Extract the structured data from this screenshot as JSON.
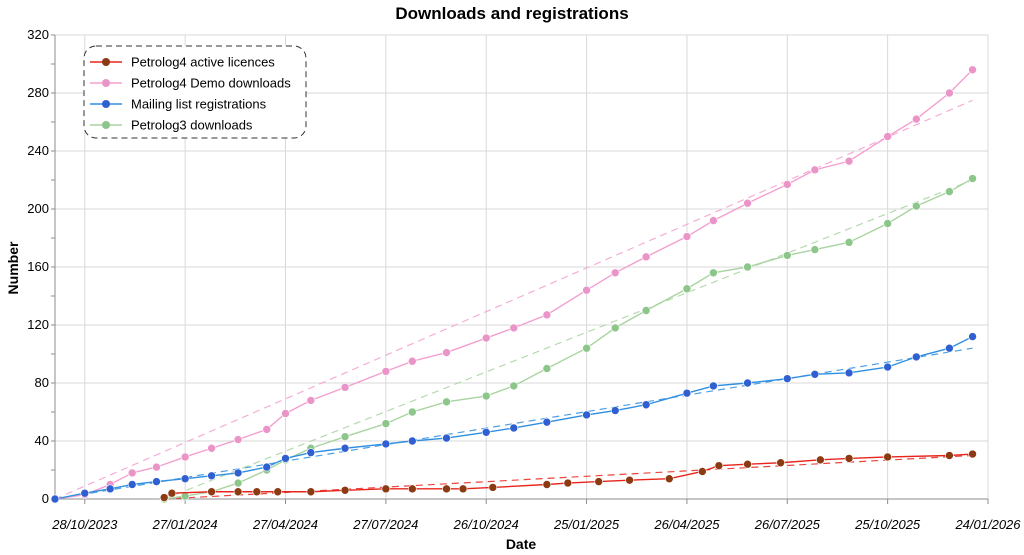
{
  "chart_data": {
    "type": "line",
    "title": "Downloads and registrations",
    "xlabel": "Date",
    "ylabel": "Number",
    "x_type": "date",
    "xlim": [
      "2023-10-01",
      "2026-01-24"
    ],
    "x_ticks": [
      "2023-10-28",
      "2024-01-27",
      "2024-04-27",
      "2024-07-27",
      "2024-10-26",
      "2025-01-25",
      "2025-04-26",
      "2025-07-26",
      "2025-10-25",
      "2026-01-24"
    ],
    "x_tick_labels": [
      "28/10/2023",
      "27/01/2024",
      "27/04/2024",
      "27/07/2024",
      "26/10/2024",
      "25/01/2025",
      "26/04/2025",
      "26/07/2025",
      "25/10/2025",
      "24/01/2026"
    ],
    "ylim": [
      0,
      320
    ],
    "y_ticks": [
      0,
      40,
      80,
      120,
      160,
      200,
      240,
      280,
      320
    ],
    "grid": true,
    "legend_position": "top-left",
    "series": [
      {
        "name": "Petrolog4 active licences",
        "color": "#e8251c",
        "marker_color": "#8b3a12",
        "points": [
          [
            "2024-01-08",
            1
          ],
          [
            "2024-01-15",
            4
          ],
          [
            "2024-02-20",
            5
          ],
          [
            "2024-03-15",
            5
          ],
          [
            "2024-04-01",
            5
          ],
          [
            "2024-04-20",
            5
          ],
          [
            "2024-05-20",
            5
          ],
          [
            "2024-06-20",
            6
          ],
          [
            "2024-07-27",
            7
          ],
          [
            "2024-08-20",
            7
          ],
          [
            "2024-09-20",
            7
          ],
          [
            "2024-10-05",
            7
          ],
          [
            "2024-11-01",
            8
          ],
          [
            "2024-12-20",
            10
          ],
          [
            "2025-01-08",
            11
          ],
          [
            "2025-02-05",
            12
          ],
          [
            "2025-03-05",
            13
          ],
          [
            "2025-04-10",
            14
          ],
          [
            "2025-05-10",
            19
          ],
          [
            "2025-05-25",
            23
          ],
          [
            "2025-06-20",
            24
          ],
          [
            "2025-07-20",
            25
          ],
          [
            "2025-08-25",
            27
          ],
          [
            "2025-09-20",
            28
          ],
          [
            "2025-10-25",
            29
          ],
          [
            "2025-12-20",
            30
          ],
          [
            "2026-01-10",
            31
          ]
        ]
      },
      {
        "name": "Petrolog4 Demo downloads",
        "color": "#f39fcf",
        "marker_color": "#ea94c8",
        "points": [
          [
            "2023-10-01",
            0
          ],
          [
            "2023-10-28",
            3
          ],
          [
            "2023-11-20",
            10
          ],
          [
            "2023-12-10",
            18
          ],
          [
            "2024-01-01",
            22
          ],
          [
            "2024-01-27",
            29
          ],
          [
            "2024-02-20",
            35
          ],
          [
            "2024-03-15",
            41
          ],
          [
            "2024-04-10",
            48
          ],
          [
            "2024-04-27",
            59
          ],
          [
            "2024-05-20",
            68
          ],
          [
            "2024-06-20",
            77
          ],
          [
            "2024-07-27",
            88
          ],
          [
            "2024-08-20",
            95
          ],
          [
            "2024-09-20",
            101
          ],
          [
            "2024-10-26",
            111
          ],
          [
            "2024-11-20",
            118
          ],
          [
            "2024-12-20",
            127
          ],
          [
            "2025-01-25",
            144
          ],
          [
            "2025-02-20",
            156
          ],
          [
            "2025-03-20",
            167
          ],
          [
            "2025-04-26",
            181
          ],
          [
            "2025-05-20",
            192
          ],
          [
            "2025-06-20",
            204
          ],
          [
            "2025-07-26",
            217
          ],
          [
            "2025-08-20",
            227
          ],
          [
            "2025-09-20",
            233
          ],
          [
            "2025-10-25",
            250
          ],
          [
            "2025-11-20",
            262
          ],
          [
            "2025-12-20",
            280
          ],
          [
            "2026-01-10",
            296
          ]
        ]
      },
      {
        "name": "Mailing list registrations",
        "color": "#2f8fe0",
        "marker_color": "#2f5fd0",
        "points": [
          [
            "2023-10-01",
            0
          ],
          [
            "2023-10-28",
            4
          ],
          [
            "2023-11-20",
            7
          ],
          [
            "2023-12-10",
            10
          ],
          [
            "2024-01-01",
            12
          ],
          [
            "2024-01-27",
            14
          ],
          [
            "2024-02-20",
            16
          ],
          [
            "2024-03-15",
            18
          ],
          [
            "2024-04-10",
            22
          ],
          [
            "2024-04-27",
            28
          ],
          [
            "2024-05-20",
            32
          ],
          [
            "2024-06-20",
            35
          ],
          [
            "2024-07-27",
            38
          ],
          [
            "2024-08-20",
            40
          ],
          [
            "2024-09-20",
            42
          ],
          [
            "2024-10-26",
            46
          ],
          [
            "2024-11-20",
            49
          ],
          [
            "2024-12-20",
            53
          ],
          [
            "2025-01-25",
            58
          ],
          [
            "2025-02-20",
            61
          ],
          [
            "2025-03-20",
            65
          ],
          [
            "2025-04-26",
            73
          ],
          [
            "2025-05-20",
            78
          ],
          [
            "2025-06-20",
            80
          ],
          [
            "2025-07-26",
            83
          ],
          [
            "2025-08-20",
            86
          ],
          [
            "2025-09-20",
            87
          ],
          [
            "2025-10-25",
            91
          ],
          [
            "2025-11-20",
            98
          ],
          [
            "2025-12-20",
            104
          ],
          [
            "2026-01-10",
            112
          ]
        ]
      },
      {
        "name": "Petrolog3 downloads",
        "color": "#a8d4a0",
        "marker_color": "#8dc68a",
        "points": [
          [
            "2024-01-08",
            0
          ],
          [
            "2024-01-27",
            2
          ],
          [
            "2024-02-20",
            5
          ],
          [
            "2024-03-15",
            11
          ],
          [
            "2024-04-10",
            20
          ],
          [
            "2024-04-27",
            27
          ],
          [
            "2024-05-20",
            35
          ],
          [
            "2024-06-20",
            43
          ],
          [
            "2024-07-27",
            52
          ],
          [
            "2024-08-20",
            60
          ],
          [
            "2024-09-20",
            67
          ],
          [
            "2024-10-26",
            71
          ],
          [
            "2024-11-20",
            78
          ],
          [
            "2024-12-20",
            90
          ],
          [
            "2025-01-25",
            104
          ],
          [
            "2025-02-20",
            118
          ],
          [
            "2025-03-20",
            130
          ],
          [
            "2025-04-26",
            145
          ],
          [
            "2025-05-20",
            156
          ],
          [
            "2025-06-20",
            160
          ],
          [
            "2025-07-26",
            168
          ],
          [
            "2025-08-20",
            172
          ],
          [
            "2025-09-20",
            177
          ],
          [
            "2025-10-25",
            190
          ],
          [
            "2025-11-20",
            202
          ],
          [
            "2025-12-20",
            212
          ],
          [
            "2026-01-10",
            221
          ]
        ]
      }
    ],
    "trendlines": [
      {
        "series": "Petrolog4 active licences",
        "from": [
          "2024-01-08",
          0
        ],
        "to": [
          "2026-01-10",
          30
        ],
        "style": "dashed"
      },
      {
        "series": "Petrolog4 Demo downloads",
        "from": [
          "2023-10-01",
          0
        ],
        "to": [
          "2026-01-10",
          275
        ],
        "style": "dashed"
      },
      {
        "series": "Mailing list registrations",
        "from": [
          "2023-10-01",
          0
        ],
        "to": [
          "2026-01-10",
          104
        ],
        "style": "dashed"
      },
      {
        "series": "Petrolog3 downloads",
        "from": [
          "2024-01-08",
          0
        ],
        "to": [
          "2026-01-10",
          220
        ],
        "style": "dashed"
      }
    ]
  }
}
